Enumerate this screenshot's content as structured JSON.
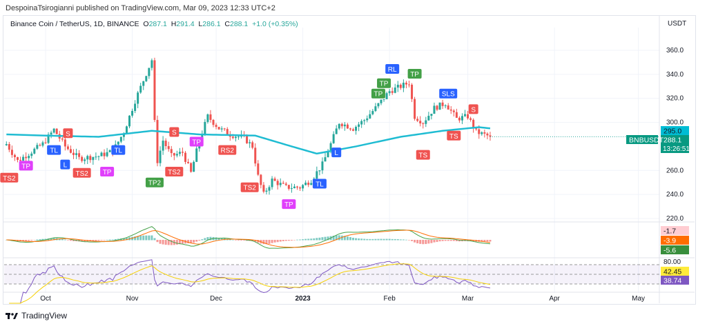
{
  "publish_line": "DespoinaTsirogianni published on TradingView.com, Mar 09, 2023 12:33 UTC+2",
  "legend": {
    "symbol": "Binance Coin / TetherUS, 1D, BINANCE",
    "o_label": "O",
    "o": "287.1",
    "h_label": "H",
    "h": "291.4",
    "l_label": "L",
    "l": "286.1",
    "c_label": "C",
    "c": "288.1",
    "change": "+1.0 (+0.35%)"
  },
  "currency": "USDT",
  "footer_brand": "TradingView",
  "colors": {
    "up": "#26a69a",
    "down": "#ef5350",
    "ma": "#1fbcd2",
    "tp": "#e040fb",
    "tp2": "#43a047",
    "tl": "#2962ff",
    "sell": "#ef5350"
  },
  "price_labels": {
    "ma": "295.0",
    "last": "288.1",
    "countdown": "13:26:51",
    "symbol_tag": "BNBUSDT"
  },
  "macd_labels": [
    "-1.7",
    "-3.9",
    "-5.6"
  ],
  "rsi_labels": {
    "upper": "80.00",
    "ma": "42.45",
    "rsi": "38.74"
  },
  "chart_data": {
    "type": "candlestick",
    "y_ticks": [
      "360.0",
      "340.0",
      "320.0",
      "300.0",
      "260.0",
      "240.0",
      "220.0"
    ],
    "x_ticks": [
      {
        "label": "Oct",
        "date": "2022-10-01"
      },
      {
        "label": "Nov",
        "date": "2022-11-01"
      },
      {
        "label": "Dec",
        "date": "2022-12-01"
      },
      {
        "label": "2023",
        "date": "2023-01-01"
      },
      {
        "label": "Feb",
        "date": "2023-02-01"
      },
      {
        "label": "Mar",
        "date": "2023-03-01"
      },
      {
        "label": "Apr",
        "date": "2023-04-01"
      },
      {
        "label": "May",
        "date": "2023-05-01"
      }
    ],
    "ylim": [
      220,
      360
    ],
    "close_anchors": [
      [
        "2022-09-17",
        282
      ],
      [
        "2022-09-21",
        268
      ],
      [
        "2022-09-25",
        274
      ],
      [
        "2022-09-30",
        282
      ],
      [
        "2022-10-04",
        294
      ],
      [
        "2022-10-08",
        280
      ],
      [
        "2022-10-13",
        270
      ],
      [
        "2022-10-20",
        272
      ],
      [
        "2022-10-25",
        276
      ],
      [
        "2022-10-29",
        292
      ],
      [
        "2022-11-02",
        318
      ],
      [
        "2022-11-05",
        335
      ],
      [
        "2022-11-08",
        352
      ],
      [
        "2022-11-09",
        300
      ],
      [
        "2022-11-10",
        268
      ],
      [
        "2022-11-12",
        285
      ],
      [
        "2022-11-15",
        272
      ],
      [
        "2022-11-19",
        275
      ],
      [
        "2022-11-22",
        258
      ],
      [
        "2022-11-25",
        285
      ],
      [
        "2022-11-28",
        305
      ],
      [
        "2022-12-02",
        295
      ],
      [
        "2022-12-06",
        290
      ],
      [
        "2022-12-11",
        287
      ],
      [
        "2022-12-14",
        280
      ],
      [
        "2022-12-16",
        255
      ],
      [
        "2022-12-18",
        240
      ],
      [
        "2022-12-21",
        252
      ],
      [
        "2022-12-26",
        246
      ],
      [
        "2022-12-31",
        246
      ],
      [
        "2023-01-04",
        252
      ],
      [
        "2023-01-08",
        265
      ],
      [
        "2023-01-11",
        282
      ],
      [
        "2023-01-14",
        300
      ],
      [
        "2023-01-19",
        295
      ],
      [
        "2023-01-23",
        302
      ],
      [
        "2023-01-27",
        312
      ],
      [
        "2023-02-01",
        326
      ],
      [
        "2023-02-05",
        330
      ],
      [
        "2023-02-08",
        333
      ],
      [
        "2023-02-10",
        305
      ],
      [
        "2023-02-13",
        300
      ],
      [
        "2023-02-17",
        312
      ],
      [
        "2023-02-21",
        316
      ],
      [
        "2023-02-25",
        303
      ],
      [
        "2023-03-01",
        305
      ],
      [
        "2023-03-04",
        292
      ],
      [
        "2023-03-09",
        288.1
      ]
    ],
    "ma_anchors": [
      [
        "2022-09-17",
        290
      ],
      [
        "2022-10-01",
        289
      ],
      [
        "2022-10-20",
        288
      ],
      [
        "2022-11-08",
        293
      ],
      [
        "2022-11-25",
        290
      ],
      [
        "2022-12-15",
        289
      ],
      [
        "2022-12-28",
        280
      ],
      [
        "2023-01-06",
        274
      ],
      [
        "2023-01-20",
        280
      ],
      [
        "2023-02-05",
        288
      ],
      [
        "2023-02-20",
        293
      ],
      [
        "2023-03-05",
        296
      ],
      [
        "2023-03-09",
        295
      ]
    ],
    "markers": [
      {
        "text": "TS2",
        "date": "2022-09-18",
        "price": 254,
        "kind": "sell"
      },
      {
        "text": "TP",
        "date": "2022-09-24",
        "price": 264,
        "kind": "tp"
      },
      {
        "text": "TL",
        "date": "2022-10-04",
        "price": 277,
        "kind": "tl"
      },
      {
        "text": "L",
        "date": "2022-10-08",
        "price": 265,
        "kind": "tl"
      },
      {
        "text": "S",
        "date": "2022-10-09",
        "price": 291,
        "kind": "sell"
      },
      {
        "text": "TS2",
        "date": "2022-10-14",
        "price": 258,
        "kind": "sell"
      },
      {
        "text": "TP",
        "date": "2022-10-23",
        "price": 259,
        "kind": "tp"
      },
      {
        "text": "TL",
        "date": "2022-10-27",
        "price": 277,
        "kind": "tl"
      },
      {
        "text": "TP2",
        "date": "2022-11-09",
        "price": 250,
        "kind": "tp2"
      },
      {
        "text": "S",
        "date": "2022-11-16",
        "price": 292,
        "kind": "sell"
      },
      {
        "text": "TS2",
        "date": "2022-11-16",
        "price": 259,
        "kind": "sell"
      },
      {
        "text": "TP",
        "date": "2022-11-24",
        "price": 284,
        "kind": "tp"
      },
      {
        "text": "RS2",
        "date": "2022-12-05",
        "price": 277,
        "kind": "sell"
      },
      {
        "text": "TS2",
        "date": "2022-12-13",
        "price": 246,
        "kind": "sell"
      },
      {
        "text": "TP",
        "date": "2022-12-27",
        "price": 232,
        "kind": "tp"
      },
      {
        "text": "TL",
        "date": "2023-01-07",
        "price": 249,
        "kind": "tl"
      },
      {
        "text": "L",
        "date": "2023-01-13",
        "price": 275,
        "kind": "tl"
      },
      {
        "text": "TP",
        "date": "2023-01-28",
        "price": 324,
        "kind": "tp2"
      },
      {
        "text": "TP",
        "date": "2023-01-30",
        "price": 332,
        "kind": "tp2"
      },
      {
        "text": "RL",
        "date": "2023-02-02",
        "price": 344.5,
        "kind": "tl"
      },
      {
        "text": "TP",
        "date": "2023-02-10",
        "price": 340.5,
        "kind": "tp2"
      },
      {
        "text": "TS",
        "date": "2023-02-13",
        "price": 273,
        "kind": "sell"
      },
      {
        "text": "SLS",
        "date": "2023-02-22",
        "price": 324,
        "kind": "tl"
      },
      {
        "text": "TS",
        "date": "2023-02-24",
        "price": 289,
        "kind": "sell"
      },
      {
        "text": "S",
        "date": "2023-03-03",
        "price": 311,
        "kind": "sell"
      }
    ]
  }
}
